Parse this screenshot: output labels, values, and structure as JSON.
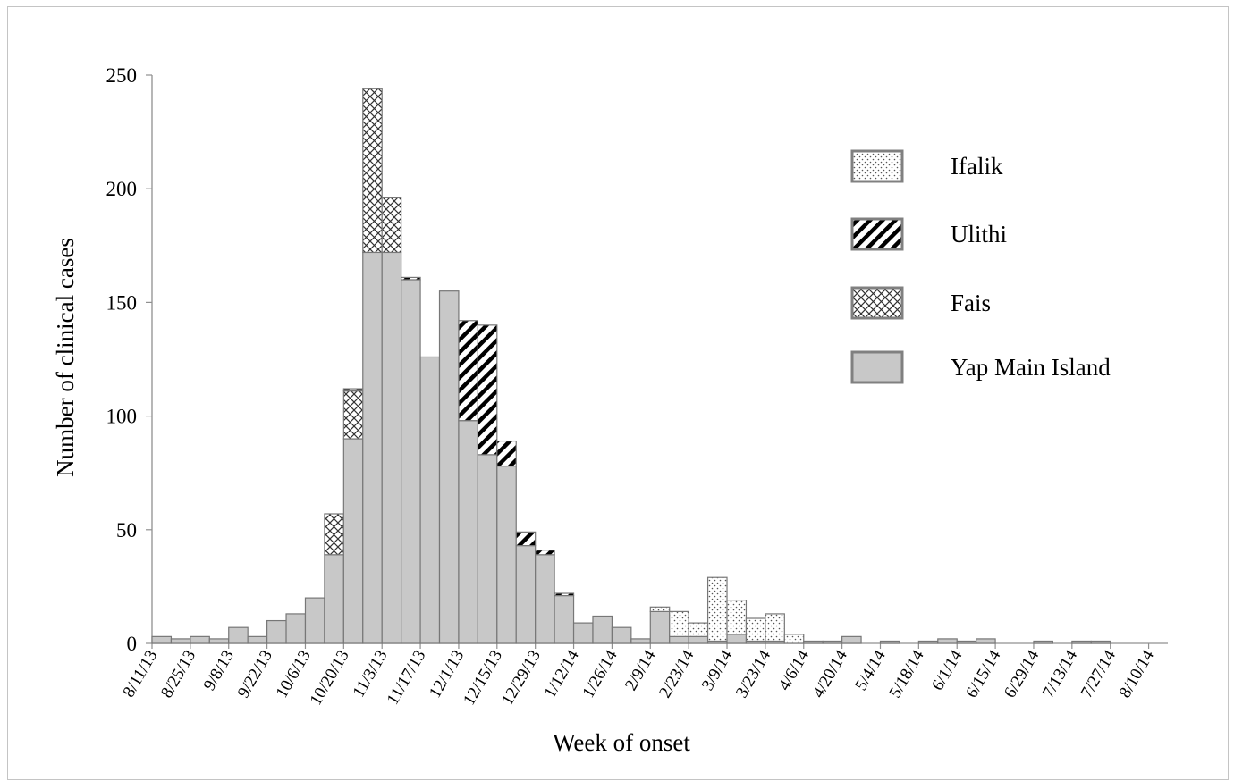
{
  "chart_data": {
    "type": "bar",
    "stacked": true,
    "xlabel": "Week of onset",
    "ylabel": "Number of clinical cases",
    "ylim": [
      0,
      250
    ],
    "yticks": [
      0,
      50,
      100,
      150,
      200,
      250
    ],
    "x_tick_labels": [
      "8/11/13",
      "8/25/13",
      "9/8/13",
      "9/22/13",
      "10/6/13",
      "10/20/13",
      "11/3/13",
      "11/17/13",
      "12/1/13",
      "12/15/13",
      "12/29/13",
      "1/12/14",
      "1/26/14",
      "2/9/14",
      "2/23/14",
      "3/9/14",
      "3/23/14",
      "4/6/14",
      "4/20/14",
      "5/4/14",
      "5/18/14",
      "6/1/14",
      "6/15/14",
      "6/29/14",
      "7/13/14",
      "7/27/14",
      "8/10/14"
    ],
    "legend_position": "right",
    "series": [
      {
        "name": "Yap Main Island",
        "pattern": "solid",
        "values": [
          3,
          2,
          3,
          2,
          7,
          3,
          10,
          13,
          20,
          39,
          90,
          172,
          172,
          160,
          126,
          155,
          98,
          83,
          78,
          43,
          39,
          21,
          9,
          12,
          7,
          2,
          14,
          3,
          3,
          1,
          4,
          1,
          1,
          0,
          1,
          1,
          3,
          0,
          1,
          0,
          1,
          2,
          1,
          2,
          0,
          0,
          1,
          0,
          1,
          1,
          0,
          0,
          0
        ]
      },
      {
        "name": "Fais",
        "pattern": "crosshatch",
        "values": [
          0,
          0,
          0,
          0,
          0,
          0,
          0,
          0,
          0,
          18,
          21,
          72,
          24,
          0,
          0,
          0,
          0,
          0,
          0,
          0,
          0,
          0,
          0,
          0,
          0,
          0,
          0,
          0,
          0,
          0,
          0,
          0,
          0,
          0,
          0,
          0,
          0,
          0,
          0,
          0,
          0,
          0,
          0,
          0,
          0,
          0,
          0,
          0,
          0,
          0,
          0,
          0,
          0
        ]
      },
      {
        "name": "Ulithi",
        "pattern": "diagonal",
        "values": [
          0,
          0,
          0,
          0,
          0,
          0,
          0,
          0,
          0,
          0,
          1,
          0,
          0,
          1,
          0,
          0,
          44,
          57,
          11,
          6,
          2,
          1,
          0,
          0,
          0,
          0,
          0,
          0,
          0,
          0,
          0,
          0,
          0,
          0,
          0,
          0,
          0,
          0,
          0,
          0,
          0,
          0,
          0,
          0,
          0,
          0,
          0,
          0,
          0,
          0,
          0,
          0,
          0
        ]
      },
      {
        "name": "Ifalik",
        "pattern": "dotted",
        "values": [
          0,
          0,
          0,
          0,
          0,
          0,
          0,
          0,
          0,
          0,
          0,
          0,
          0,
          0,
          0,
          0,
          0,
          0,
          0,
          0,
          0,
          0,
          0,
          0,
          0,
          0,
          2,
          11,
          6,
          28,
          15,
          10,
          12,
          4,
          0,
          0,
          0,
          0,
          0,
          0,
          0,
          0,
          0,
          0,
          0,
          0,
          0,
          0,
          0,
          0,
          0,
          0,
          0
        ]
      }
    ]
  },
  "colors": {
    "bar_fill": "#c8c8c8",
    "bar_stroke": "#777777",
    "pattern_background": "#ffffff",
    "legend_swatch_stroke": "#808080",
    "axis": "#909090"
  }
}
